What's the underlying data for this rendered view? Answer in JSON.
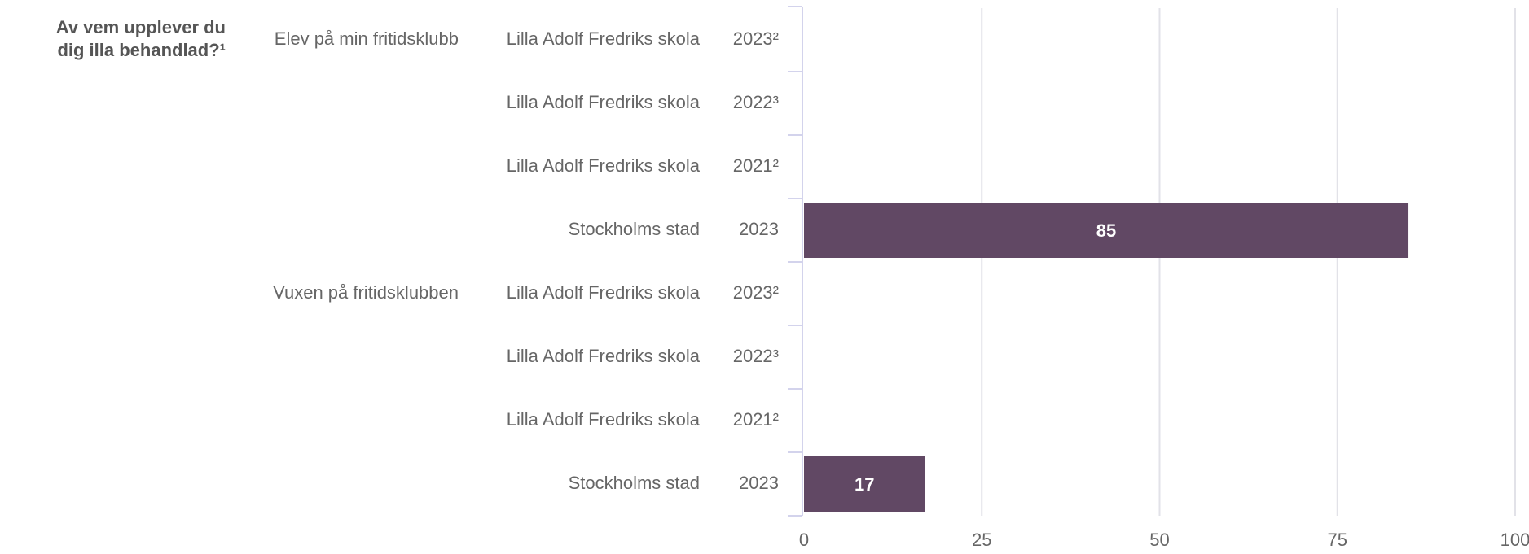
{
  "chart_data": {
    "type": "bar",
    "orientation": "horizontal",
    "question": "Av vem upplever du dig illa behandlad?¹",
    "groups": [
      "Elev på min fritidsklubb",
      null,
      null,
      null,
      "Vuxen på fritidsklubben",
      null,
      null,
      null
    ],
    "categories": [
      "Lilla Adolf Fredriks skola",
      "Lilla Adolf Fredriks skola",
      "Lilla Adolf Fredriks skola",
      "Stockholms stad",
      "Lilla Adolf Fredriks skola",
      "Lilla Adolf Fredriks skola",
      "Lilla Adolf Fredriks skola",
      "Stockholms stad"
    ],
    "years": [
      "2023²",
      "2022³",
      "2021²",
      "2023",
      "2023²",
      "2022³",
      "2021²",
      "2023"
    ],
    "values": [
      null,
      null,
      null,
      85,
      null,
      null,
      null,
      17
    ],
    "color": "#614864",
    "xlim": [
      0,
      100
    ],
    "xticks": [
      0,
      25,
      50,
      75,
      100
    ],
    "grid": true
  }
}
